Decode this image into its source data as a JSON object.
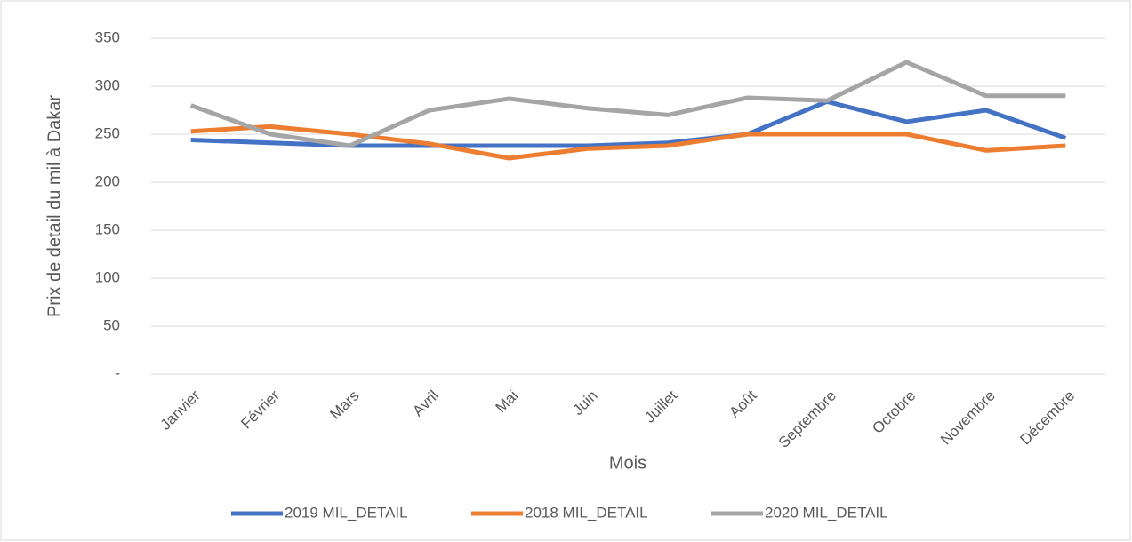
{
  "chart_data": {
    "type": "line",
    "categories": [
      "Janvier",
      "Février",
      "Mars",
      "Avril",
      "Mai",
      "Juin",
      "Juillet",
      "Août",
      "Septembre",
      "Octobre",
      "Novembre",
      "Décembre"
    ],
    "series": [
      {
        "name": "2019 MIL_DETAIL",
        "color": "#4472c4",
        "values": [
          244,
          241,
          238,
          238,
          238,
          238,
          241,
          250,
          284,
          263,
          275,
          246
        ]
      },
      {
        "name": "2018 MIL_DETAIL",
        "color": "#ed7d31",
        "values": [
          253,
          258,
          250,
          240,
          225,
          235,
          238,
          250,
          250,
          250,
          233,
          238
        ]
      },
      {
        "name": "2020 MIL_DETAIL",
        "color": "#a5a5a5",
        "values": [
          280,
          250,
          238,
          275,
          287,
          277,
          270,
          288,
          285,
          325,
          290,
          290
        ]
      }
    ],
    "xlabel": "Mois",
    "ylabel": "Prix de detail du mil à Dakar",
    "ylim": [
      0,
      350
    ],
    "yticks": [
      {
        "value": 0,
        "label": "-"
      },
      50,
      100,
      150,
      200,
      250,
      300,
      350
    ],
    "grid": true,
    "legend": "bottom"
  }
}
